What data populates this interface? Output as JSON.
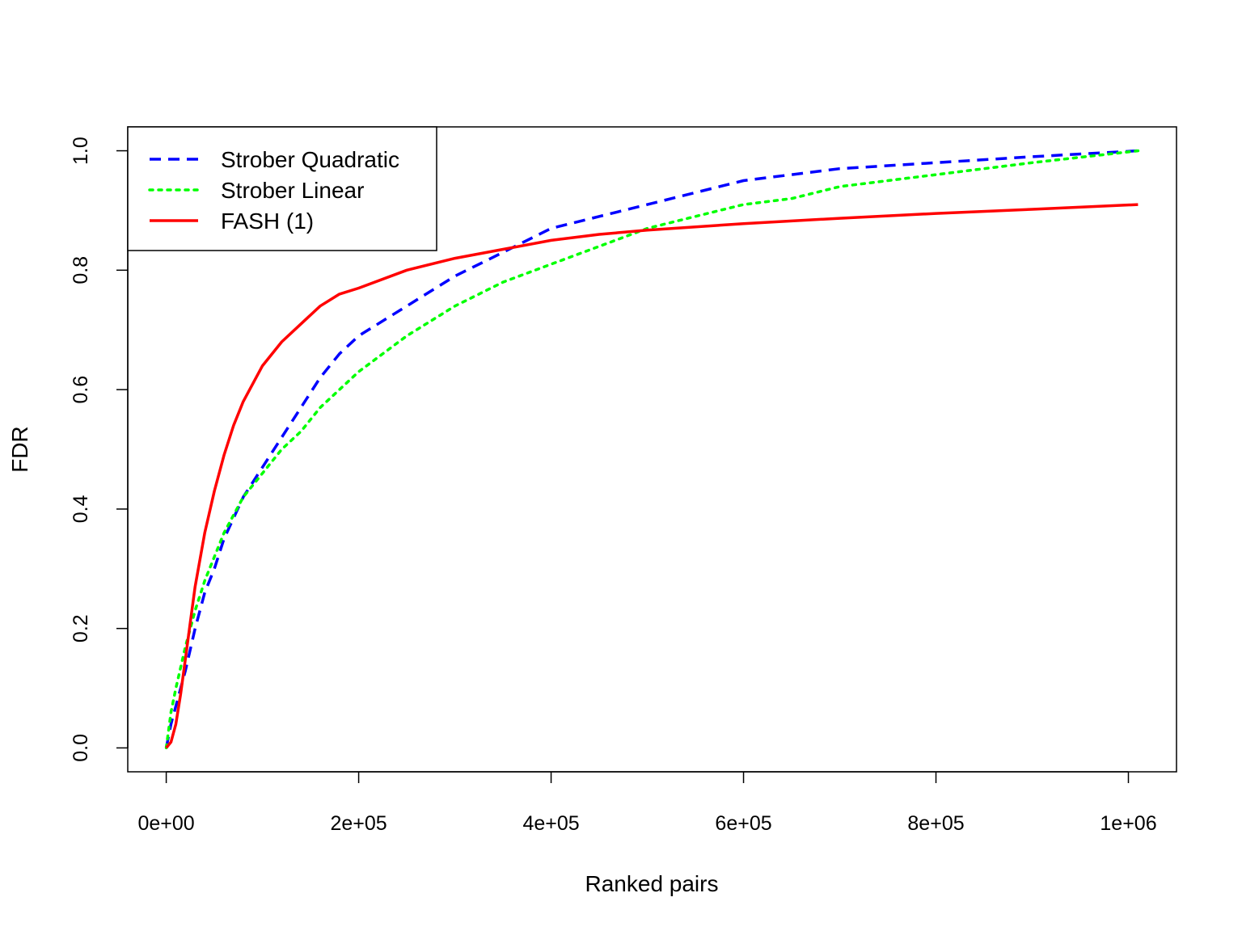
{
  "chart_data": {
    "type": "line",
    "title": "",
    "xlabel": "Ranked pairs",
    "ylabel": "FDR",
    "xlim": [
      -40000,
      1050000
    ],
    "ylim": [
      -0.04,
      1.04
    ],
    "x_ticks": [
      0,
      200000,
      400000,
      600000,
      800000,
      1000000
    ],
    "x_tick_labels": [
      "0e+00",
      "2e+05",
      "4e+05",
      "6e+05",
      "8e+05",
      "1e+06"
    ],
    "y_ticks": [
      0,
      0.2,
      0.4,
      0.6,
      0.8,
      1.0
    ],
    "y_tick_labels": [
      "0.0",
      "0.2",
      "0.4",
      "0.6",
      "0.8",
      "1.0"
    ],
    "grid": false,
    "legend_position": "top-left",
    "series": [
      {
        "name": "Strober Quadratic",
        "color": "#0000ff",
        "line_style": "dashed",
        "x": [
          0,
          5000,
          10000,
          20000,
          30000,
          40000,
          50000,
          60000,
          80000,
          100000,
          120000,
          140000,
          160000,
          180000,
          200000,
          250000,
          300000,
          350000,
          400000,
          450000,
          500000,
          550000,
          600000,
          650000,
          700000,
          800000,
          900000,
          1010000
        ],
        "y": [
          0,
          0.04,
          0.07,
          0.13,
          0.2,
          0.26,
          0.3,
          0.35,
          0.42,
          0.47,
          0.52,
          0.57,
          0.62,
          0.66,
          0.69,
          0.74,
          0.79,
          0.83,
          0.87,
          0.89,
          0.91,
          0.93,
          0.95,
          0.96,
          0.97,
          0.98,
          0.99,
          1.0
        ]
      },
      {
        "name": "Strober Linear",
        "color": "#00ff00",
        "line_style": "dotted",
        "x": [
          0,
          5000,
          10000,
          20000,
          30000,
          40000,
          50000,
          60000,
          80000,
          100000,
          120000,
          140000,
          160000,
          180000,
          200000,
          250000,
          300000,
          350000,
          400000,
          450000,
          500000,
          550000,
          600000,
          650000,
          700000,
          800000,
          900000,
          1010000
        ],
        "y": [
          0,
          0.06,
          0.1,
          0.17,
          0.23,
          0.28,
          0.32,
          0.36,
          0.42,
          0.46,
          0.5,
          0.53,
          0.57,
          0.6,
          0.63,
          0.69,
          0.74,
          0.78,
          0.81,
          0.84,
          0.87,
          0.89,
          0.91,
          0.92,
          0.94,
          0.96,
          0.98,
          1.0
        ]
      },
      {
        "name": "FASH (1)",
        "color": "#ff0000",
        "line_style": "solid",
        "x": [
          0,
          5000,
          10000,
          15000,
          20000,
          25000,
          30000,
          40000,
          50000,
          60000,
          70000,
          80000,
          100000,
          120000,
          140000,
          160000,
          180000,
          200000,
          250000,
          300000,
          350000,
          400000,
          450000,
          500000,
          600000,
          700000,
          800000,
          900000,
          1010000
        ],
        "y": [
          0,
          0.01,
          0.04,
          0.09,
          0.15,
          0.21,
          0.27,
          0.36,
          0.43,
          0.49,
          0.54,
          0.58,
          0.64,
          0.68,
          0.71,
          0.74,
          0.76,
          0.77,
          0.8,
          0.82,
          0.835,
          0.85,
          0.86,
          0.867,
          0.878,
          0.887,
          0.895,
          0.902,
          0.91
        ]
      }
    ]
  }
}
